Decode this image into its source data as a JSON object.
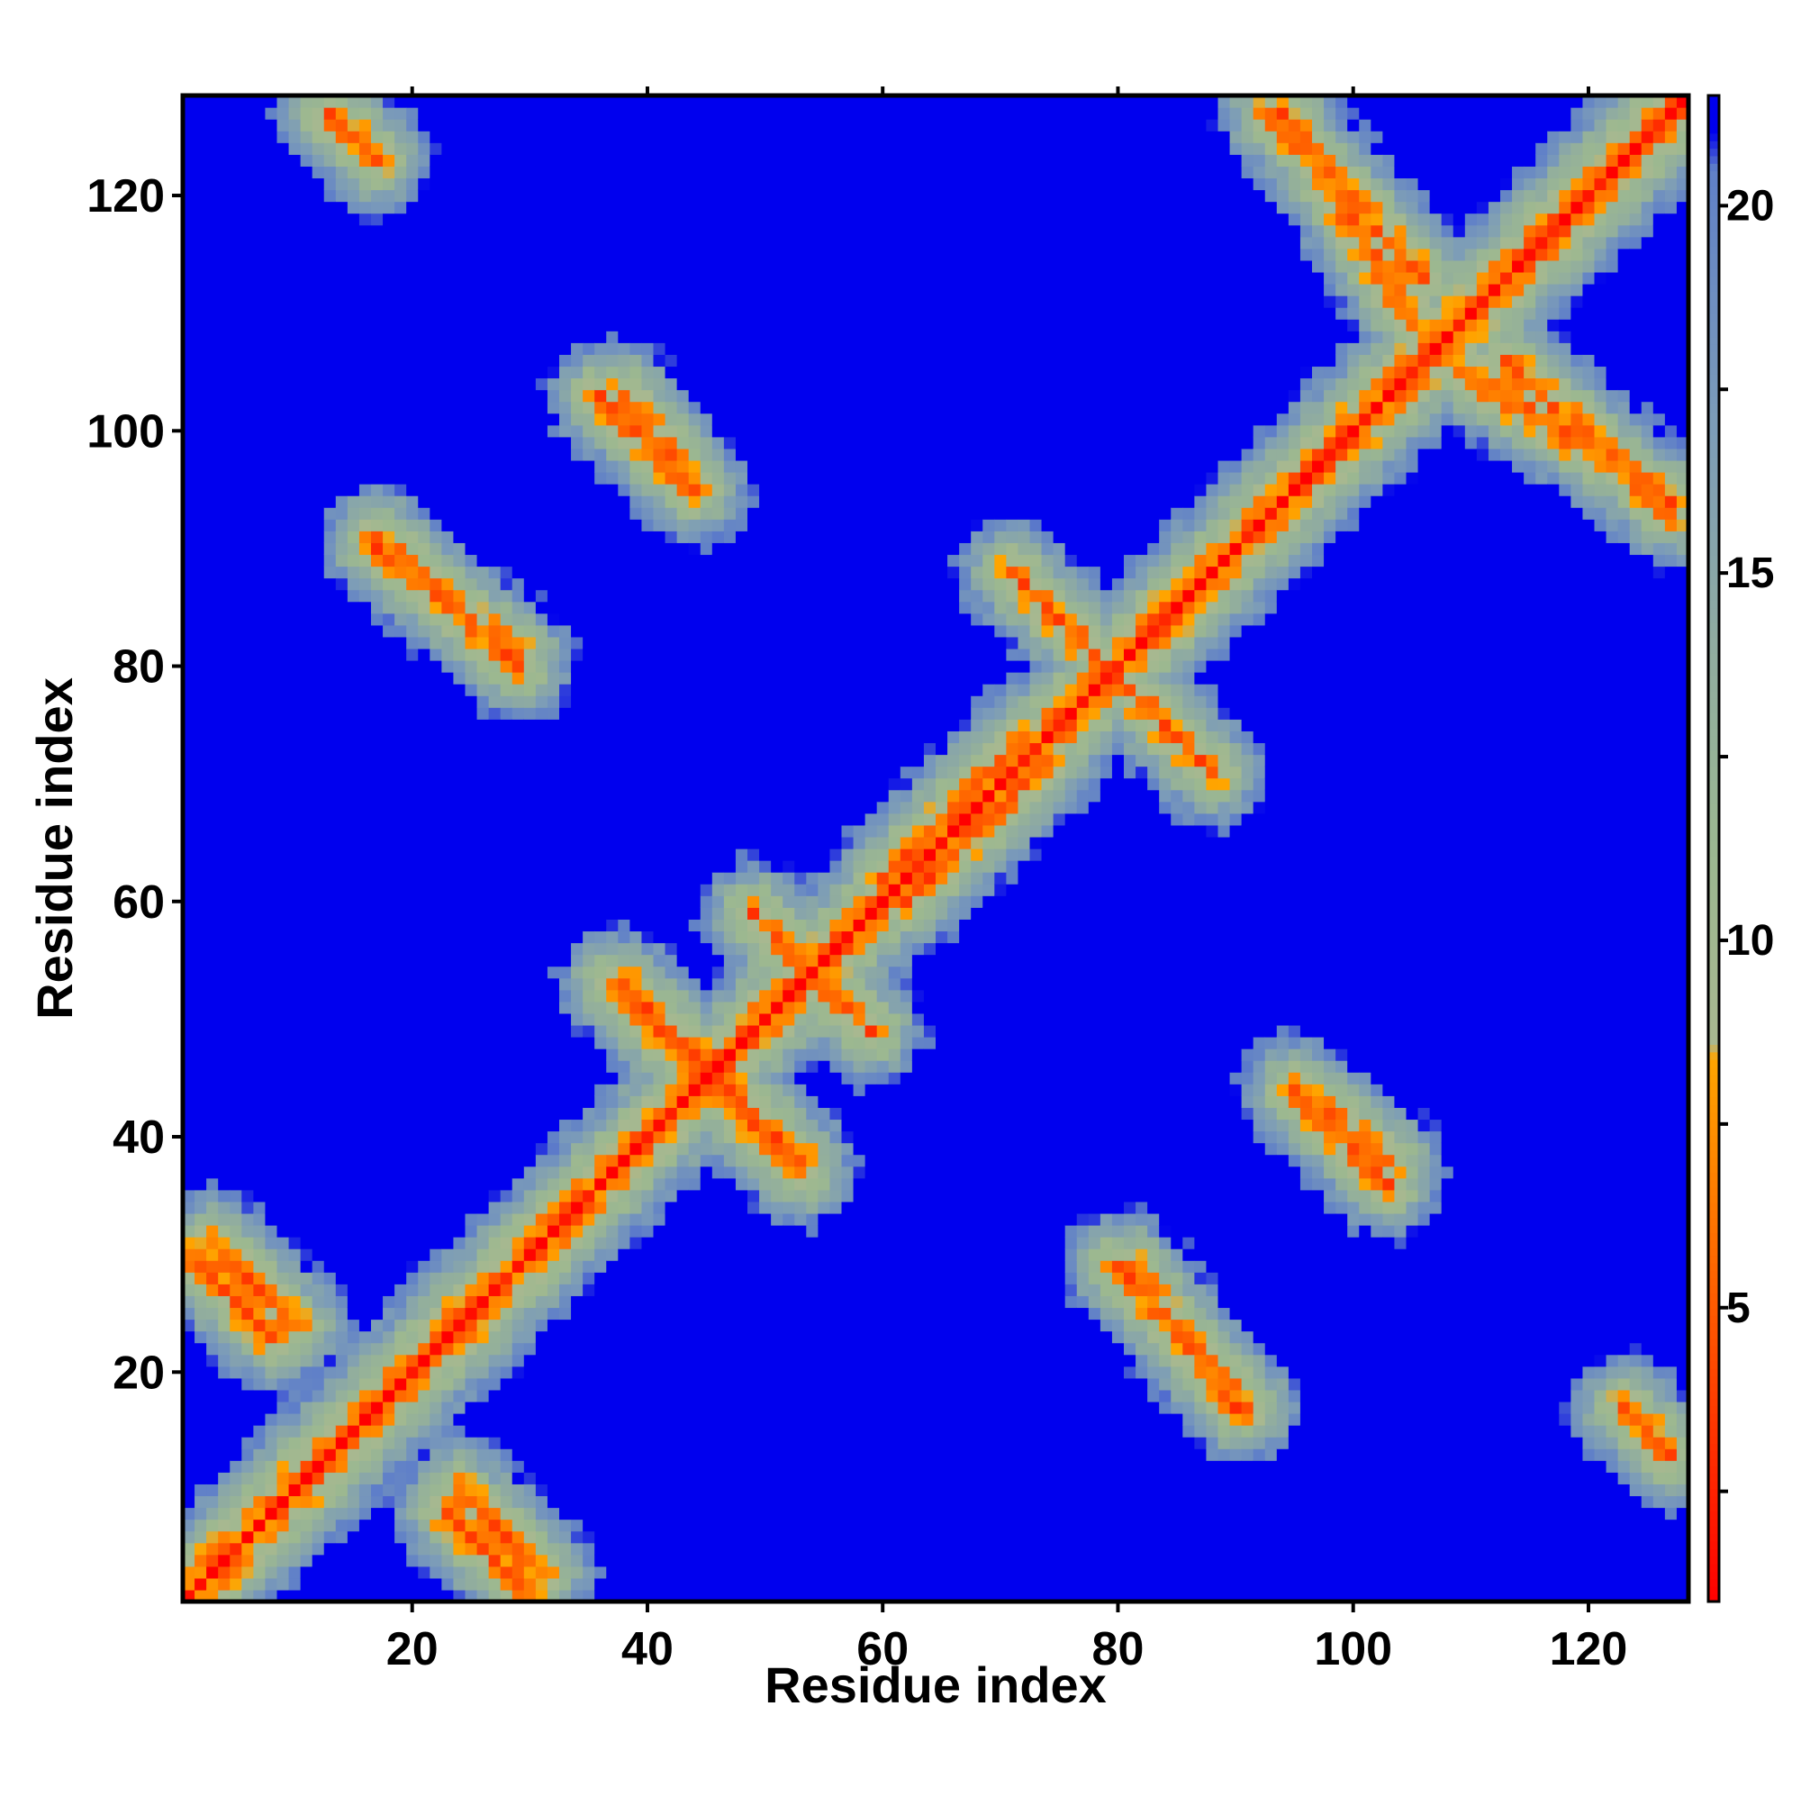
{
  "chart_data": {
    "type": "heatmap",
    "title": "",
    "xlabel": "Residue index",
    "ylabel": "Residue index",
    "n_residues": 128,
    "xlim": [
      0.5,
      128.5
    ],
    "ylim": [
      0.5,
      128.5
    ],
    "x_ticks": [
      20,
      40,
      60,
      80,
      100,
      120
    ],
    "y_ticks": [
      20,
      40,
      60,
      80,
      100,
      120
    ],
    "colorbar": {
      "range": [
        1,
        21.5
      ],
      "ticks": [
        5,
        10,
        15,
        20
      ],
      "minor_ticks": [
        2.5,
        7.5,
        12.5,
        17.5
      ],
      "placement": "right",
      "cutoff_value": 21,
      "stops": [
        {
          "value": 1,
          "color": "#ff0000"
        },
        {
          "value": 5,
          "color": "#ff5a00"
        },
        {
          "value": 8.4,
          "color": "#ffa500"
        },
        {
          "value": 8.6,
          "color": "#a8b890"
        },
        {
          "value": 11,
          "color": "#9cb890"
        },
        {
          "value": 14,
          "color": "#90aca0"
        },
        {
          "value": 17,
          "color": "#7c9cb8"
        },
        {
          "value": 20.5,
          "color": "#6080c8"
        },
        {
          "value": 21,
          "color": "#0000ee"
        }
      ]
    },
    "above_cutoff_color": "#0000ee",
    "grid": false,
    "legend": "colorbar right",
    "secondary_structure_contacts": [
      {
        "kind": "main_diagonal",
        "start": [
          1,
          1
        ],
        "end": [
          128,
          128
        ]
      },
      {
        "kind": "antiparallel",
        "start": [
          3,
          31
        ],
        "end": [
          10,
          24
        ]
      },
      {
        "kind": "antiparallel",
        "start": [
          23,
          8
        ],
        "end": [
          30,
          1
        ]
      },
      {
        "kind": "antiparallel",
        "start": [
          17,
          91
        ],
        "end": [
          29,
          80
        ]
      },
      {
        "kind": "antiparallel",
        "start": [
          38,
          103
        ],
        "end": [
          44,
          95
        ]
      },
      {
        "kind": "antiparallel",
        "start": [
          13,
          127
        ],
        "end": [
          17,
          123
        ]
      },
      {
        "kind": "antiparallel",
        "start": [
          37,
          53
        ],
        "end": [
          45,
          45
        ]
      },
      {
        "kind": "antiparallel",
        "start": [
          46,
          45
        ],
        "end": [
          53,
          38
        ]
      },
      {
        "kind": "antiparallel",
        "start": [
          49,
          59
        ],
        "end": [
          58,
          50
        ]
      },
      {
        "kind": "antiparallel",
        "start": [
          71,
          88
        ],
        "end": [
          79,
          80
        ]
      },
      {
        "kind": "antiparallel",
        "start": [
          80,
          79
        ],
        "end": [
          88,
          71
        ]
      },
      {
        "kind": "antiparallel",
        "start": [
          81,
          29
        ],
        "end": [
          90,
          17
        ]
      },
      {
        "kind": "antiparallel",
        "start": [
          95,
          44
        ],
        "end": [
          103,
          36
        ]
      },
      {
        "kind": "antiparallel",
        "start": [
          93,
          127
        ],
        "end": [
          106,
          113
        ]
      },
      {
        "kind": "antiparallel",
        "start": [
          108,
          106
        ],
        "end": [
          127,
          94
        ]
      },
      {
        "kind": "antiparallel",
        "start": [
          124,
          16
        ],
        "end": [
          127,
          13
        ]
      },
      {
        "kind": "helix_band",
        "start": [
          60,
          62
        ],
        "end": [
          72,
          74
        ]
      }
    ]
  }
}
